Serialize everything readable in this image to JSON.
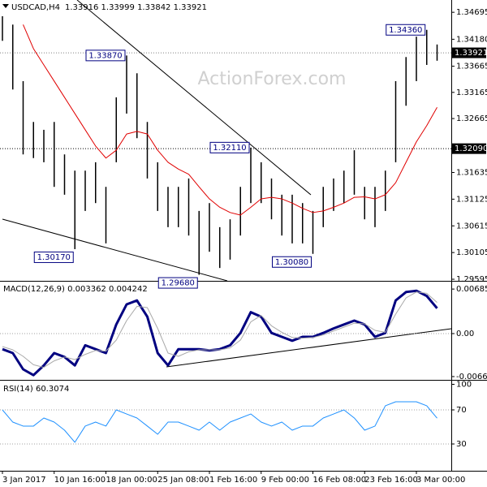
{
  "chart_data": [
    {
      "type": "ohlc",
      "title": "USDCAD,H4",
      "subtitle": "1.33916 1.33999 1.33842 1.33921",
      "watermark": "ActionForex.com",
      "categories": [
        "3 Jan 2017",
        null,
        null,
        null,
        null,
        "10 Jan 16:00",
        null,
        null,
        null,
        null,
        "18 Jan 00:00",
        null,
        null,
        null,
        null,
        "25 Jan 08:00",
        null,
        null,
        null,
        null,
        "1 Feb 16:00",
        null,
        null,
        null,
        null,
        "9 Feb 00:00",
        null,
        null,
        null,
        null,
        "16 Feb 08:00",
        null,
        null,
        null,
        null,
        "23 Feb 16:00",
        null,
        null,
        null,
        null,
        "3 Mar 00:00",
        null,
        null
      ],
      "high": [
        1.3462,
        1.3446,
        1.3338,
        1.326,
        1.3245,
        1.326,
        1.3198,
        1.3167,
        1.3167,
        1.3183,
        1.3136,
        1.3307,
        1.3387,
        1.3353,
        1.326,
        1.3183,
        1.3136,
        1.3136,
        1.3152,
        1.309,
        1.3105,
        1.3059,
        1.3074,
        1.3136,
        1.3211,
        1.3183,
        1.3152,
        1.3121,
        1.3121,
        1.3105,
        1.309,
        1.3136,
        1.3152,
        1.3167,
        1.3206,
        1.3136,
        1.3136,
        1.3167,
        1.3338,
        1.3384,
        1.3423,
        1.3436,
        1.3408
      ],
      "low": [
        1.3415,
        1.3322,
        1.3198,
        1.3191,
        1.3183,
        1.3136,
        1.3121,
        1.3017,
        1.309,
        1.3105,
        1.3028,
        1.3183,
        1.3276,
        1.3229,
        1.3152,
        1.309,
        1.3059,
        1.3059,
        1.3043,
        1.2968,
        1.3012,
        1.2981,
        1.2997,
        1.3043,
        1.3105,
        1.3105,
        1.3074,
        1.3043,
        1.3028,
        1.3028,
        1.3008,
        1.3059,
        1.309,
        1.3105,
        1.3121,
        1.3074,
        1.3059,
        1.309,
        1.3183,
        1.3291,
        1.3338,
        1.3369,
        1.3377
      ],
      "bar_color": "#000000",
      "ma": {
        "color": "#e00000",
        "values": [
          null,
          null,
          1.3446,
          1.34,
          1.3369,
          1.3338,
          1.3307,
          1.3276,
          1.3245,
          1.3214,
          1.3191,
          1.3206,
          1.3237,
          1.3242,
          1.3237,
          1.3206,
          1.3183,
          1.317,
          1.316,
          1.3136,
          1.3113,
          1.3097,
          1.3087,
          1.3082,
          1.3097,
          1.3113,
          1.3116,
          1.3113,
          1.3105,
          1.3095,
          1.3087,
          1.309,
          1.3097,
          1.3105,
          1.3116,
          1.3117,
          1.3113,
          1.3121,
          1.3144,
          1.3183,
          1.3222,
          1.3253,
          1.3288
        ]
      },
      "ylim": [
        1.2958,
        1.3493
      ],
      "yticks": [
        1.34695,
        {
          "value": 1.3418,
          "label": "1.34180"
        },
        1.33665,
        1.33165,
        1.32665,
        1.31635,
        1.31125,
        1.30615,
        1.30105,
        1.29595
      ],
      "hlines": [
        {
          "value": 1.33921,
          "label": "1.33921",
          "color": "#000000",
          "text_color": "#ffffff",
          "line": "#808080"
        },
        {
          "value": 1.3209,
          "label": "1.32090",
          "color": "#000000",
          "text_color": "#ffffff",
          "line": "#000000"
        }
      ],
      "annotations": [
        {
          "text": "1.34360",
          "value": 1.3436
        },
        {
          "text": "1.33870",
          "value": 1.3387
        },
        {
          "text": "1.32110",
          "value": 1.3211
        },
        {
          "text": "1.30170",
          "value": 1.3017
        },
        {
          "text": "1.29680",
          "value": 1.2968
        },
        {
          "text": "1.30080",
          "value": 1.3008
        }
      ],
      "annotation_color": "#000080"
    },
    {
      "type": "line",
      "title": "MACD(12,26,9) 0.003362 0.004242",
      "series": [
        {
          "color": "#000080",
          "width": 3,
          "values": [
            -0.0024,
            -0.003,
            -0.0055,
            -0.0064,
            -0.0049,
            -0.003,
            -0.0036,
            -0.0049,
            -0.0018,
            -0.0024,
            -0.003,
            0.0014,
            0.0045,
            0.0051,
            0.0026,
            -0.003,
            -0.0049,
            -0.0024,
            -0.0024,
            -0.0024,
            -0.0026,
            -0.0024,
            -0.0018,
            0.0001,
            0.0033,
            0.0026,
            0.0001,
            -0.0005,
            -0.0011,
            -0.0005,
            -0.0005,
            0.0001,
            0.0008,
            0.0014,
            0.002,
            0.0014,
            -0.0005,
            0.0001,
            0.0051,
            0.0064,
            0.0066,
            0.0058,
            0.0039
          ]
        },
        {
          "color": "#a9a9a9",
          "width": 1,
          "values": [
            -0.002,
            -0.0025,
            -0.0035,
            -0.0048,
            -0.0052,
            -0.0042,
            -0.0036,
            -0.004,
            -0.0032,
            -0.0026,
            -0.0027,
            -0.001,
            0.002,
            0.0042,
            0.004,
            0.0008,
            -0.003,
            -0.0035,
            -0.0028,
            -0.0025,
            -0.0025,
            -0.0025,
            -0.0022,
            -0.001,
            0.0018,
            0.0028,
            0.0012,
            0.0002,
            -0.0006,
            -0.0007,
            -0.0006,
            -0.0002,
            0.0004,
            0.001,
            0.0016,
            0.0015,
            0.0005,
            0.0002,
            0.003,
            0.0055,
            0.0064,
            0.0062,
            0.0048
          ]
        }
      ],
      "ylim": [
        -0.007,
        0.007875
      ],
      "yticks": [
        0.006859,
        {
          "value": 0,
          "label": "0.00"
        },
        -0.00662
      ],
      "levels": [
        0
      ]
    },
    {
      "type": "line",
      "title": "RSI(14) 60.3074",
      "series": [
        {
          "color": "#1e90ff",
          "width": 1,
          "values": [
            70,
            55.7,
            51,
            51,
            60.5,
            55.7,
            46.2,
            32,
            51,
            55.7,
            51,
            70,
            65.2,
            60.5,
            51,
            41.4,
            55.7,
            55.7,
            51,
            46.2,
            55.7,
            46.2,
            55.7,
            60.5,
            65.2,
            55.7,
            51,
            55.7,
            46.2,
            51,
            51,
            60.5,
            65.2,
            70,
            60.5,
            46.2,
            51,
            74.8,
            79.5,
            79.5,
            79.5,
            74.8,
            60.3
          ]
        }
      ],
      "ylim": [
        0,
        100
      ],
      "yticks": [
        100,
        70,
        30
      ],
      "levels": [
        70,
        30
      ]
    }
  ]
}
